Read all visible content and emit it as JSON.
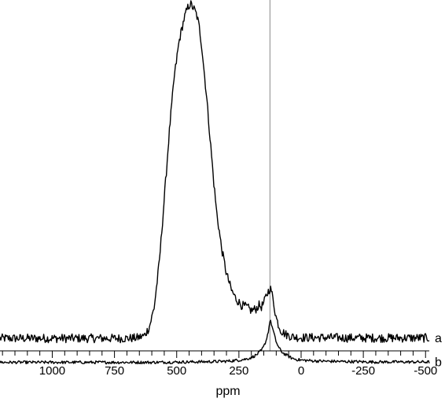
{
  "chart_data": {
    "type": "line",
    "title": "",
    "xlabel": "ppm",
    "ylabel": "",
    "x_reversed": true,
    "xlim": [
      1210,
      -515
    ],
    "ylim": [
      0,
      1.0
    ],
    "y_axis_visible": false,
    "grid": false,
    "legend": "none",
    "x_ticks": [
      {
        "value": 1000,
        "label": "1000"
      },
      {
        "value": 750,
        "label": "750"
      },
      {
        "value": 500,
        "label": "500"
      },
      {
        "value": 250,
        "label": "250"
      },
      {
        "value": 0,
        "label": "0"
      },
      {
        "value": -250,
        "label": "-250"
      },
      {
        "value": -500,
        "label": "-500"
      }
    ],
    "x_minor_step": 50,
    "reference_line": {
      "x": 125,
      "color": "#aaaaaa"
    },
    "series": [
      {
        "label": "a",
        "color": "#000000",
        "baseline": 0.085,
        "noise": 0.012,
        "x": [
          1210,
          1100,
          1000,
          900,
          800,
          700,
          660,
          630,
          610,
          590,
          570,
          550,
          530,
          510,
          490,
          470,
          455,
          445,
          440,
          430,
          420,
          410,
          400,
          390,
          380,
          370,
          360,
          350,
          340,
          320,
          300,
          280,
          260,
          240,
          220,
          200,
          180,
          170,
          160,
          150,
          140,
          130,
          125,
          120,
          110,
          100,
          90,
          80,
          70,
          60,
          50,
          40,
          20,
          0,
          -50,
          -100,
          -200,
          -300,
          -400,
          -515
        ],
        "y": [
          0.085,
          0.085,
          0.085,
          0.085,
          0.085,
          0.085,
          0.086,
          0.092,
          0.115,
          0.17,
          0.29,
          0.46,
          0.64,
          0.79,
          0.89,
          0.95,
          0.98,
          0.99,
          0.985,
          0.975,
          0.96,
          0.93,
          0.88,
          0.81,
          0.74,
          0.66,
          0.58,
          0.5,
          0.43,
          0.33,
          0.26,
          0.215,
          0.19,
          0.175,
          0.17,
          0.16,
          0.165,
          0.175,
          0.17,
          0.18,
          0.2,
          0.215,
          0.22,
          0.215,
          0.18,
          0.14,
          0.12,
          0.105,
          0.1,
          0.095,
          0.093,
          0.09,
          0.088,
          0.087,
          0.087,
          0.087,
          0.086,
          0.086,
          0.086,
          0.086
        ]
      },
      {
        "label": "b",
        "color": "#000000",
        "baseline": 0.02,
        "noise": 0.004,
        "x": [
          1210,
          1000,
          800,
          600,
          450,
          350,
          300,
          250,
          220,
          200,
          180,
          160,
          150,
          140,
          130,
          125,
          120,
          110,
          100,
          90,
          80,
          70,
          60,
          50,
          40,
          20,
          0,
          -50,
          -100,
          -200,
          -300,
          -400,
          -515
        ],
        "y": [
          0.02,
          0.02,
          0.02,
          0.02,
          0.021,
          0.022,
          0.023,
          0.026,
          0.029,
          0.033,
          0.04,
          0.052,
          0.063,
          0.08,
          0.11,
          0.135,
          0.125,
          0.1,
          0.075,
          0.06,
          0.05,
          0.044,
          0.04,
          0.036,
          0.032,
          0.028,
          0.026,
          0.024,
          0.023,
          0.022,
          0.021,
          0.021,
          0.021
        ]
      }
    ]
  }
}
